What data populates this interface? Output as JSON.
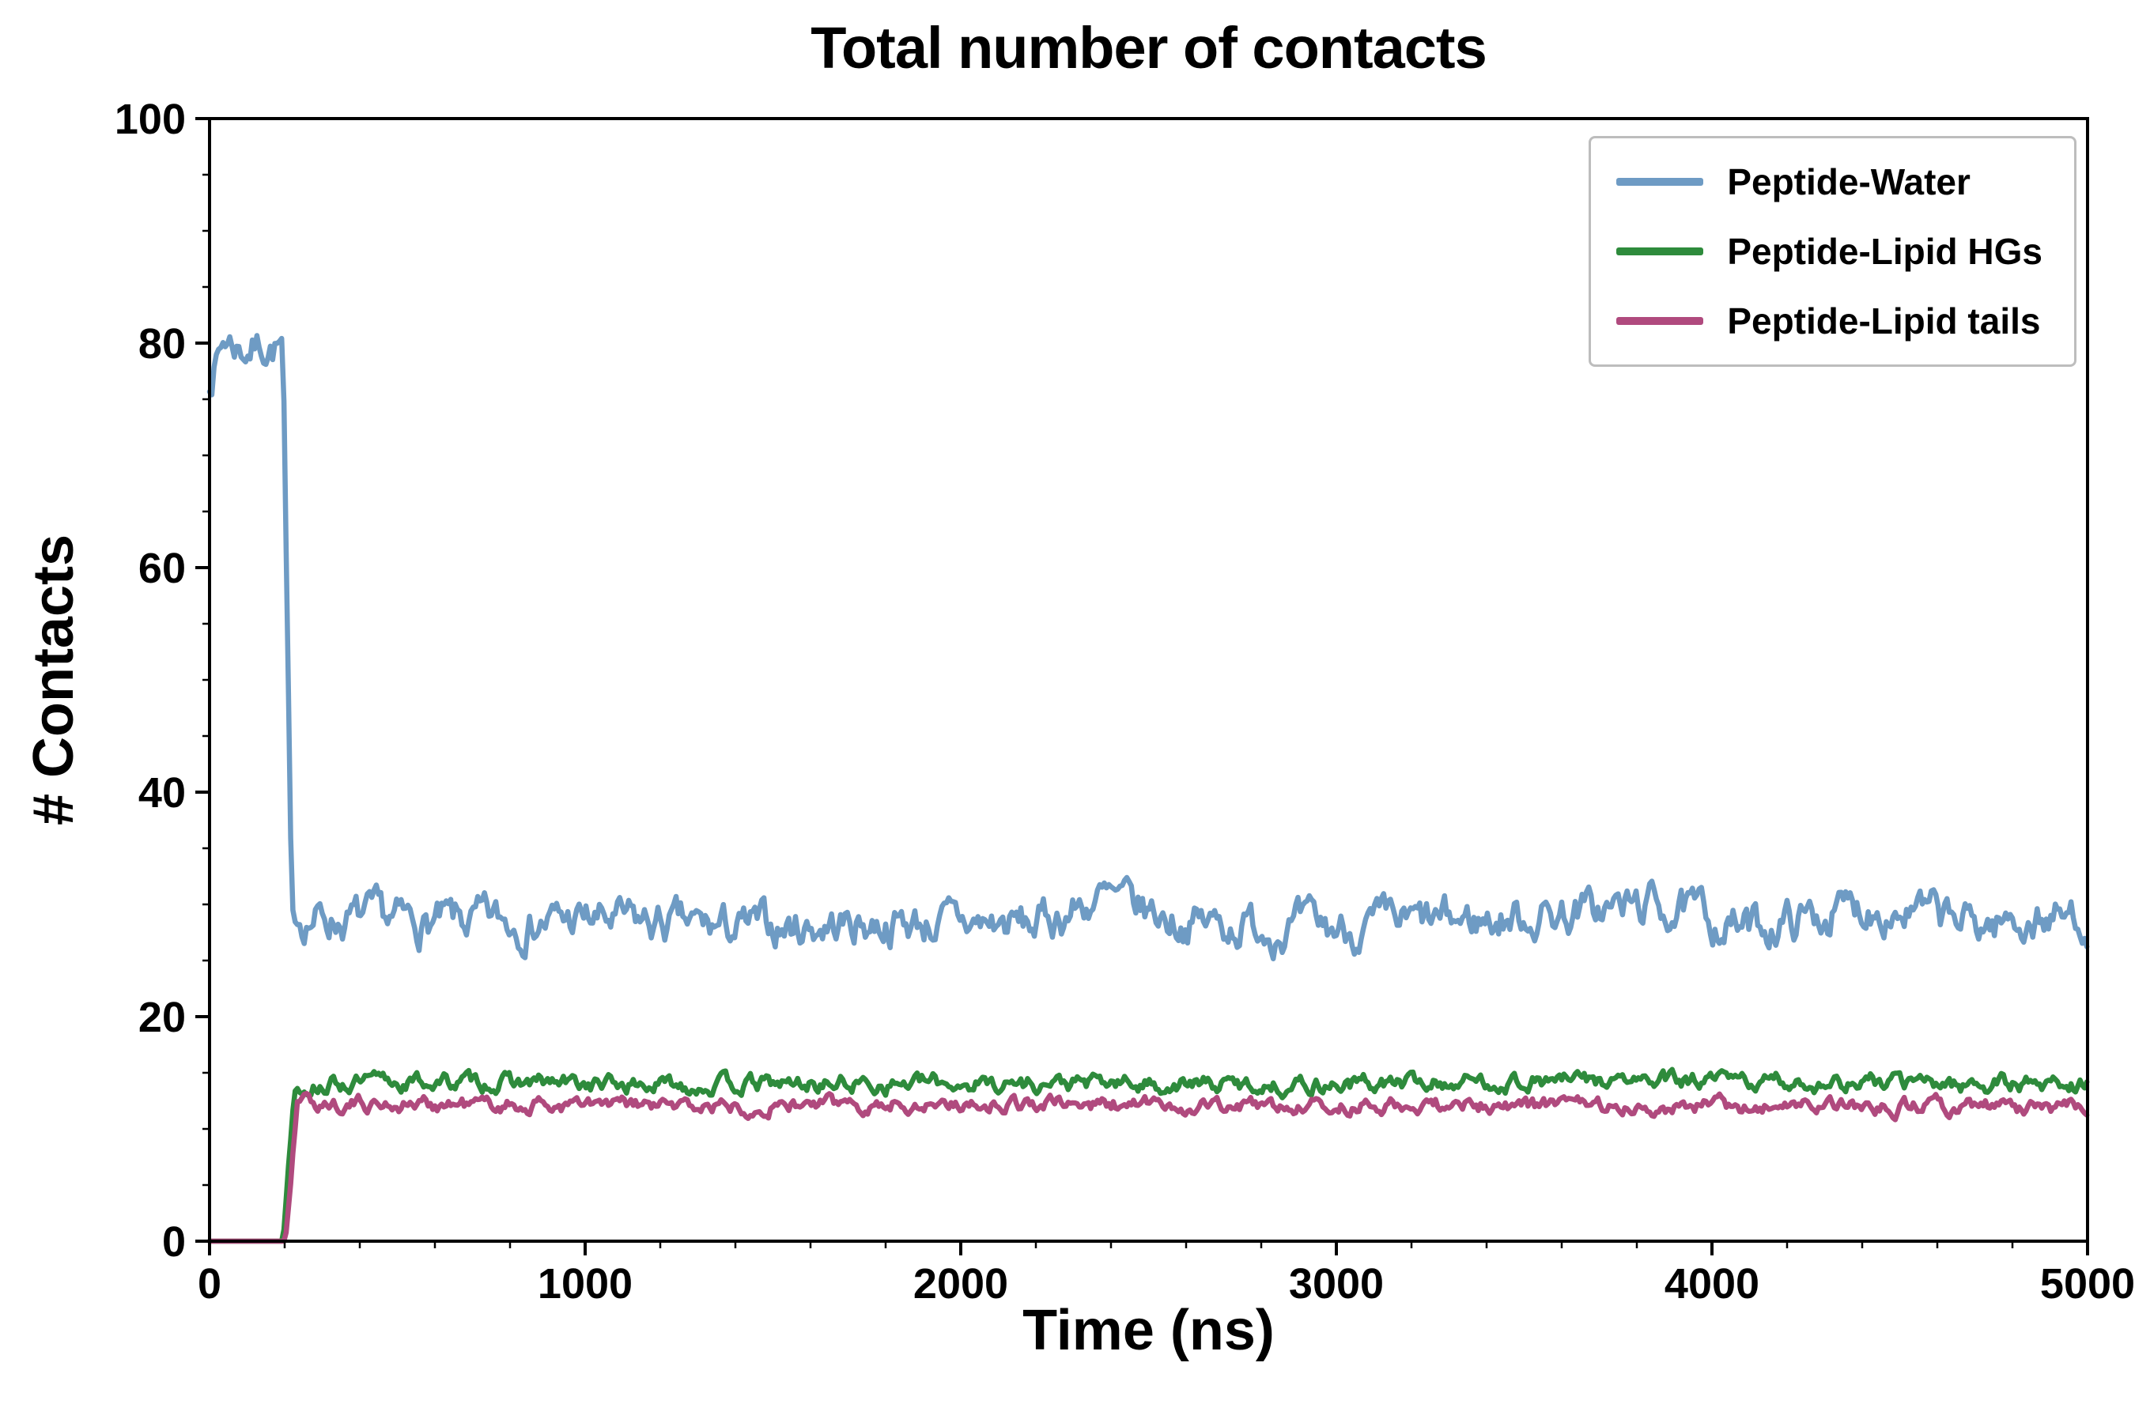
{
  "chart_data": {
    "type": "line",
    "title": "Total number of contacts",
    "xlabel": "Time (ns)",
    "ylabel": "# Contacts",
    "xlim": [
      0,
      5000
    ],
    "ylim": [
      0,
      100
    ],
    "xticks": [
      0,
      1000,
      2000,
      3000,
      4000,
      5000
    ],
    "yticks": [
      0,
      20,
      40,
      60,
      80,
      100
    ],
    "x_minor_step": 200,
    "y_minor_step": 5,
    "grid": false,
    "legend_position": "upper right",
    "axis_color": "#000000",
    "series": [
      {
        "name": "Peptide-Water",
        "color": "#6e9bc4",
        "seed": 7,
        "noise": 1.3,
        "points": [
          [
            0,
            77
          ],
          [
            40,
            80.5
          ],
          [
            90,
            79.5
          ],
          [
            140,
            80
          ],
          [
            195,
            79.5
          ],
          [
            218,
            29
          ],
          [
            300,
            28.8
          ],
          [
            600,
            28.3
          ],
          [
            1000,
            28.6
          ],
          [
            1400,
            27.8
          ],
          [
            1800,
            28.4
          ],
          [
            2200,
            28.2
          ],
          [
            2370,
            30.5
          ],
          [
            2600,
            28.4
          ],
          [
            3000,
            27.8
          ],
          [
            3400,
            28.6
          ],
          [
            3850,
            30
          ],
          [
            4100,
            27.8
          ],
          [
            4430,
            30
          ],
          [
            4700,
            28.2
          ],
          [
            5000,
            29
          ]
        ],
        "description": "about 77-81 contacts from 0 to 200 ns, sharp drop at about 210 ns, then fluctuates around 28 (range 24-33) out to 5000 ns"
      },
      {
        "name": "Peptide-Lipid HGs",
        "color": "#2e8b3c",
        "seed": 13,
        "noise": 0.55,
        "points": [
          [
            0,
            0
          ],
          [
            196,
            0
          ],
          [
            212,
            8
          ],
          [
            228,
            14
          ],
          [
            600,
            14.2
          ],
          [
            1200,
            13.9
          ],
          [
            2000,
            14.1
          ],
          [
            2800,
            13.9
          ],
          [
            3600,
            14.3
          ],
          [
            4400,
            14.1
          ],
          [
            5000,
            14
          ]
        ],
        "description": "zero contacts until about 200 ns, rapid rise, then steady around 14 out to 5000 ns"
      },
      {
        "name": "Peptide-Lipid tails",
        "color": "#b04a7e",
        "seed": 21,
        "noise": 0.5,
        "points": [
          [
            0,
            0
          ],
          [
            202,
            0
          ],
          [
            218,
            6
          ],
          [
            235,
            12.3
          ],
          [
            600,
            12.2
          ],
          [
            1200,
            12
          ],
          [
            2000,
            12.3
          ],
          [
            2800,
            12
          ],
          [
            3600,
            12.1
          ],
          [
            4400,
            12
          ],
          [
            5000,
            11.8
          ]
        ],
        "description": "zero contacts until about 205 ns, rapid rise, then steady around 12 out to 5000 ns"
      }
    ]
  }
}
